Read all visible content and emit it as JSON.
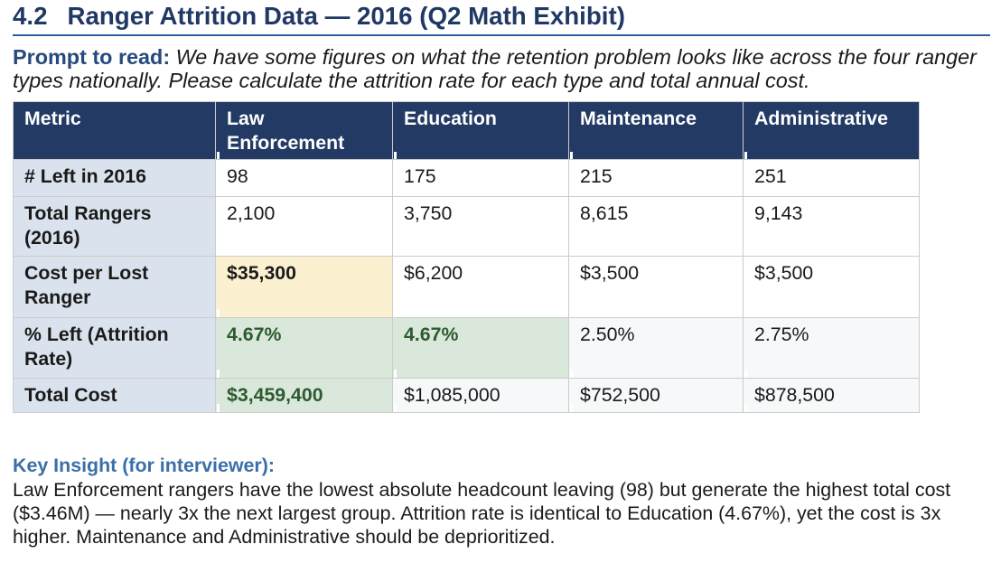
{
  "title": {
    "number": "4.2",
    "text": "Ranger Attrition Data — 2016 (Q2 Math Exhibit)"
  },
  "prompt": {
    "label": "Prompt to read:",
    "text": "We have some figures on what the retention problem looks like across the four ranger types nationally. Please calculate the attrition rate for each type and total annual cost."
  },
  "table": {
    "columns": [
      "Metric",
      "Law Enforcement",
      "Education",
      "Maintenance",
      "Administrative"
    ],
    "rows": [
      {
        "metric": "# Left in 2016",
        "values": [
          "98",
          "175",
          "215",
          "251"
        ]
      },
      {
        "metric": "Total Rangers (2016)",
        "values": [
          "2,100",
          "3,750",
          "8,615",
          "9,143"
        ]
      },
      {
        "metric": "Cost per Lost Ranger",
        "values": [
          "$35,300",
          "$6,200",
          "$3,500",
          "$3,500"
        ]
      },
      {
        "metric": "% Left (Attrition Rate)",
        "values": [
          "4.67%",
          "4.67%",
          "2.50%",
          "2.75%"
        ]
      },
      {
        "metric": "Total Cost",
        "values": [
          "$3,459,400",
          "$1,085,000",
          "$752,500",
          "$878,500"
        ]
      }
    ]
  },
  "insight": {
    "label": "Key Insight (for interviewer):",
    "text": "Law Enforcement rangers have the lowest absolute headcount leaving (98) but generate the highest total cost ($3.46M) — nearly 3x the next largest group. Attrition rate is identical to Education (4.67%), yet the cost is 3x higher. Maintenance and Administrative should be deprioritized."
  },
  "colors": {
    "title": "#1f3864",
    "rule": "#2f5f9b",
    "header_bg": "#233a64",
    "first_column_bg": "#dae3ed",
    "highlight_yellow": "#fbf1d1",
    "highlight_green_bg": "#d9e8db",
    "highlight_green_text": "#2d5a30",
    "muted_row_bg": "#f6f8fa",
    "insight_label": "#3b6fa8"
  }
}
